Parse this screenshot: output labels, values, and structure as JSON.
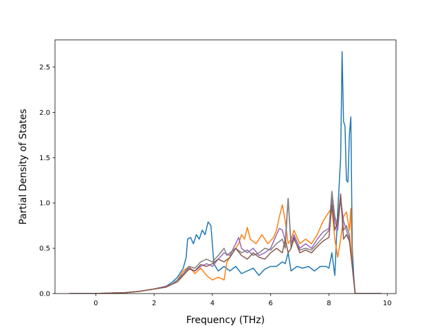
{
  "chart_data": {
    "type": "line",
    "title": "",
    "xlabel": "Frequency (THz)",
    "ylabel": "Partial Density of States",
    "xlim": [
      -1.4,
      10.3
    ],
    "ylim": [
      0.0,
      2.8
    ],
    "xticks": [
      0,
      2,
      4,
      6,
      8,
      10
    ],
    "yticks": [
      0.0,
      0.5,
      1.0,
      1.5,
      2.0,
      2.5
    ],
    "xtick_labels": [
      "0",
      "2",
      "4",
      "6",
      "8",
      "10"
    ],
    "ytick_labels": [
      "0.0",
      "0.5",
      "1.0",
      "1.5",
      "2.0",
      "2.5"
    ],
    "grid": false,
    "legend": "none",
    "series": [
      {
        "color": "#1f77b4",
        "points": [
          [
            -0.9,
            0
          ],
          [
            0,
            0
          ],
          [
            0.5,
            0.005
          ],
          [
            1,
            0.01
          ],
          [
            1.5,
            0.025
          ],
          [
            2,
            0.05
          ],
          [
            2.4,
            0.08
          ],
          [
            2.6,
            0.12
          ],
          [
            2.8,
            0.18
          ],
          [
            3.0,
            0.28
          ],
          [
            3.1,
            0.4
          ],
          [
            3.15,
            0.6
          ],
          [
            3.25,
            0.62
          ],
          [
            3.35,
            0.55
          ],
          [
            3.45,
            0.65
          ],
          [
            3.55,
            0.6
          ],
          [
            3.65,
            0.7
          ],
          [
            3.75,
            0.65
          ],
          [
            3.85,
            0.79
          ],
          [
            3.95,
            0.75
          ],
          [
            4.0,
            0.55
          ],
          [
            4.05,
            0.33
          ],
          [
            4.2,
            0.25
          ],
          [
            4.4,
            0.3
          ],
          [
            4.6,
            0.25
          ],
          [
            4.8,
            0.3
          ],
          [
            5.0,
            0.22
          ],
          [
            5.2,
            0.25
          ],
          [
            5.4,
            0.28
          ],
          [
            5.6,
            0.2
          ],
          [
            5.8,
            0.27
          ],
          [
            6.0,
            0.3
          ],
          [
            6.2,
            0.3
          ],
          [
            6.4,
            0.35
          ],
          [
            6.5,
            0.33
          ],
          [
            6.6,
            0.45
          ],
          [
            6.7,
            0.25
          ],
          [
            6.9,
            0.3
          ],
          [
            7.1,
            0.28
          ],
          [
            7.3,
            0.3
          ],
          [
            7.5,
            0.25
          ],
          [
            7.7,
            0.3
          ],
          [
            7.9,
            0.3
          ],
          [
            8.0,
            0.28
          ],
          [
            8.1,
            0.45
          ],
          [
            8.2,
            0.2
          ],
          [
            8.3,
            0.9
          ],
          [
            8.4,
            1.5
          ],
          [
            8.45,
            2.67
          ],
          [
            8.5,
            1.9
          ],
          [
            8.55,
            1.85
          ],
          [
            8.6,
            1.25
          ],
          [
            8.65,
            1.23
          ],
          [
            8.7,
            1.75
          ],
          [
            8.75,
            1.95
          ],
          [
            8.8,
            0.5
          ],
          [
            8.85,
            0.2
          ],
          [
            8.9,
            0
          ],
          [
            9.8,
            0
          ]
        ]
      },
      {
        "color": "#ff7f0e",
        "points": [
          [
            -0.9,
            0
          ],
          [
            0,
            0
          ],
          [
            0.5,
            0.005
          ],
          [
            1,
            0.01
          ],
          [
            1.5,
            0.025
          ],
          [
            2,
            0.05
          ],
          [
            2.4,
            0.08
          ],
          [
            2.6,
            0.1
          ],
          [
            2.8,
            0.15
          ],
          [
            3.0,
            0.25
          ],
          [
            3.2,
            0.3
          ],
          [
            3.4,
            0.22
          ],
          [
            3.6,
            0.28
          ],
          [
            3.8,
            0.2
          ],
          [
            4.0,
            0.15
          ],
          [
            4.2,
            0.18
          ],
          [
            4.4,
            0.15
          ],
          [
            4.5,
            0.35
          ],
          [
            4.7,
            0.45
          ],
          [
            4.9,
            0.55
          ],
          [
            5.0,
            0.65
          ],
          [
            5.1,
            0.6
          ],
          [
            5.2,
            0.73
          ],
          [
            5.3,
            0.6
          ],
          [
            5.5,
            0.55
          ],
          [
            5.7,
            0.65
          ],
          [
            5.9,
            0.55
          ],
          [
            6.1,
            0.62
          ],
          [
            6.2,
            0.7
          ],
          [
            6.3,
            0.85
          ],
          [
            6.4,
            0.98
          ],
          [
            6.5,
            0.8
          ],
          [
            6.6,
            0.55
          ],
          [
            6.7,
            0.6
          ],
          [
            6.8,
            0.7
          ],
          [
            7.0,
            0.55
          ],
          [
            7.2,
            0.6
          ],
          [
            7.4,
            0.55
          ],
          [
            7.6,
            0.65
          ],
          [
            7.8,
            0.8
          ],
          [
            8.0,
            0.9
          ],
          [
            8.1,
            0.95
          ],
          [
            8.2,
            0.6
          ],
          [
            8.3,
            0.4
          ],
          [
            8.4,
            0.6
          ],
          [
            8.5,
            0.85
          ],
          [
            8.6,
            0.9
          ],
          [
            8.7,
            0.7
          ],
          [
            8.75,
            0.94
          ],
          [
            8.8,
            0.3
          ],
          [
            8.9,
            0
          ],
          [
            9.8,
            0
          ]
        ]
      },
      {
        "color": "#9467bd",
        "points": [
          [
            -0.9,
            0
          ],
          [
            0,
            0
          ],
          [
            0.5,
            0.005
          ],
          [
            1,
            0.01
          ],
          [
            1.5,
            0.025
          ],
          [
            2,
            0.05
          ],
          [
            2.4,
            0.08
          ],
          [
            2.6,
            0.1
          ],
          [
            2.8,
            0.15
          ],
          [
            3.0,
            0.2
          ],
          [
            3.2,
            0.28
          ],
          [
            3.4,
            0.25
          ],
          [
            3.6,
            0.3
          ],
          [
            3.8,
            0.33
          ],
          [
            4.0,
            0.3
          ],
          [
            4.2,
            0.38
          ],
          [
            4.4,
            0.45
          ],
          [
            4.6,
            0.42
          ],
          [
            4.8,
            0.55
          ],
          [
            4.9,
            0.62
          ],
          [
            5.0,
            0.5
          ],
          [
            5.2,
            0.45
          ],
          [
            5.4,
            0.5
          ],
          [
            5.6,
            0.42
          ],
          [
            5.8,
            0.45
          ],
          [
            6.0,
            0.5
          ],
          [
            6.2,
            0.65
          ],
          [
            6.3,
            0.72
          ],
          [
            6.4,
            0.7
          ],
          [
            6.5,
            0.58
          ],
          [
            6.6,
            1.05
          ],
          [
            6.7,
            0.55
          ],
          [
            6.8,
            0.65
          ],
          [
            7.0,
            0.5
          ],
          [
            7.2,
            0.55
          ],
          [
            7.4,
            0.5
          ],
          [
            7.6,
            0.6
          ],
          [
            7.8,
            0.68
          ],
          [
            8.0,
            0.72
          ],
          [
            8.1,
            1.05
          ],
          [
            8.2,
            0.8
          ],
          [
            8.3,
            0.7
          ],
          [
            8.4,
            1.05
          ],
          [
            8.5,
            0.8
          ],
          [
            8.6,
            0.7
          ],
          [
            8.7,
            0.6
          ],
          [
            8.8,
            0.3
          ],
          [
            8.9,
            0
          ],
          [
            9.8,
            0
          ]
        ]
      },
      {
        "color": "#7f7f7f",
        "points": [
          [
            -0.9,
            0
          ],
          [
            0,
            0
          ],
          [
            0.5,
            0.005
          ],
          [
            1,
            0.01
          ],
          [
            1.5,
            0.025
          ],
          [
            2,
            0.05
          ],
          [
            2.4,
            0.07
          ],
          [
            2.6,
            0.1
          ],
          [
            2.8,
            0.15
          ],
          [
            3.0,
            0.22
          ],
          [
            3.2,
            0.3
          ],
          [
            3.4,
            0.28
          ],
          [
            3.6,
            0.35
          ],
          [
            3.8,
            0.38
          ],
          [
            4.0,
            0.35
          ],
          [
            4.2,
            0.42
          ],
          [
            4.4,
            0.5
          ],
          [
            4.5,
            0.42
          ],
          [
            4.6,
            0.45
          ],
          [
            4.8,
            0.5
          ],
          [
            5.0,
            0.45
          ],
          [
            5.2,
            0.48
          ],
          [
            5.4,
            0.42
          ],
          [
            5.6,
            0.45
          ],
          [
            5.8,
            0.5
          ],
          [
            6.0,
            0.48
          ],
          [
            6.2,
            0.55
          ],
          [
            6.4,
            0.6
          ],
          [
            6.5,
            0.5
          ],
          [
            6.6,
            1.05
          ],
          [
            6.7,
            0.5
          ],
          [
            6.8,
            0.6
          ],
          [
            7.0,
            0.48
          ],
          [
            7.2,
            0.5
          ],
          [
            7.4,
            0.48
          ],
          [
            7.6,
            0.55
          ],
          [
            7.8,
            0.62
          ],
          [
            8.0,
            0.7
          ],
          [
            8.1,
            1.13
          ],
          [
            8.2,
            0.85
          ],
          [
            8.3,
            0.75
          ],
          [
            8.4,
            1.05
          ],
          [
            8.5,
            0.7
          ],
          [
            8.6,
            0.75
          ],
          [
            8.7,
            0.65
          ],
          [
            8.8,
            0.3
          ],
          [
            8.9,
            0
          ],
          [
            9.8,
            0
          ]
        ]
      },
      {
        "color": "#8c564b",
        "points": [
          [
            -0.9,
            0
          ],
          [
            0,
            0
          ],
          [
            0.5,
            0.005
          ],
          [
            1,
            0.01
          ],
          [
            1.5,
            0.025
          ],
          [
            2,
            0.05
          ],
          [
            2.4,
            0.07
          ],
          [
            2.6,
            0.1
          ],
          [
            2.8,
            0.13
          ],
          [
            3.0,
            0.2
          ],
          [
            3.2,
            0.27
          ],
          [
            3.4,
            0.25
          ],
          [
            3.6,
            0.32
          ],
          [
            3.8,
            0.3
          ],
          [
            4.0,
            0.33
          ],
          [
            4.2,
            0.38
          ],
          [
            4.4,
            0.35
          ],
          [
            4.6,
            0.4
          ],
          [
            4.8,
            0.5
          ],
          [
            5.0,
            0.42
          ],
          [
            5.2,
            0.38
          ],
          [
            5.4,
            0.45
          ],
          [
            5.6,
            0.4
          ],
          [
            5.8,
            0.38
          ],
          [
            6.0,
            0.45
          ],
          [
            6.2,
            0.5
          ],
          [
            6.4,
            0.45
          ],
          [
            6.5,
            0.6
          ],
          [
            6.6,
            0.45
          ],
          [
            6.7,
            0.5
          ],
          [
            6.8,
            0.62
          ],
          [
            7.0,
            0.45
          ],
          [
            7.2,
            0.48
          ],
          [
            7.4,
            0.45
          ],
          [
            7.6,
            0.52
          ],
          [
            7.8,
            0.58
          ],
          [
            8.0,
            0.62
          ],
          [
            8.1,
            0.98
          ],
          [
            8.2,
            0.7
          ],
          [
            8.3,
            0.8
          ],
          [
            8.4,
            1.1
          ],
          [
            8.5,
            0.6
          ],
          [
            8.6,
            0.65
          ],
          [
            8.7,
            0.58
          ],
          [
            8.8,
            0.3
          ],
          [
            8.9,
            0
          ],
          [
            9.8,
            0
          ]
        ]
      }
    ]
  }
}
